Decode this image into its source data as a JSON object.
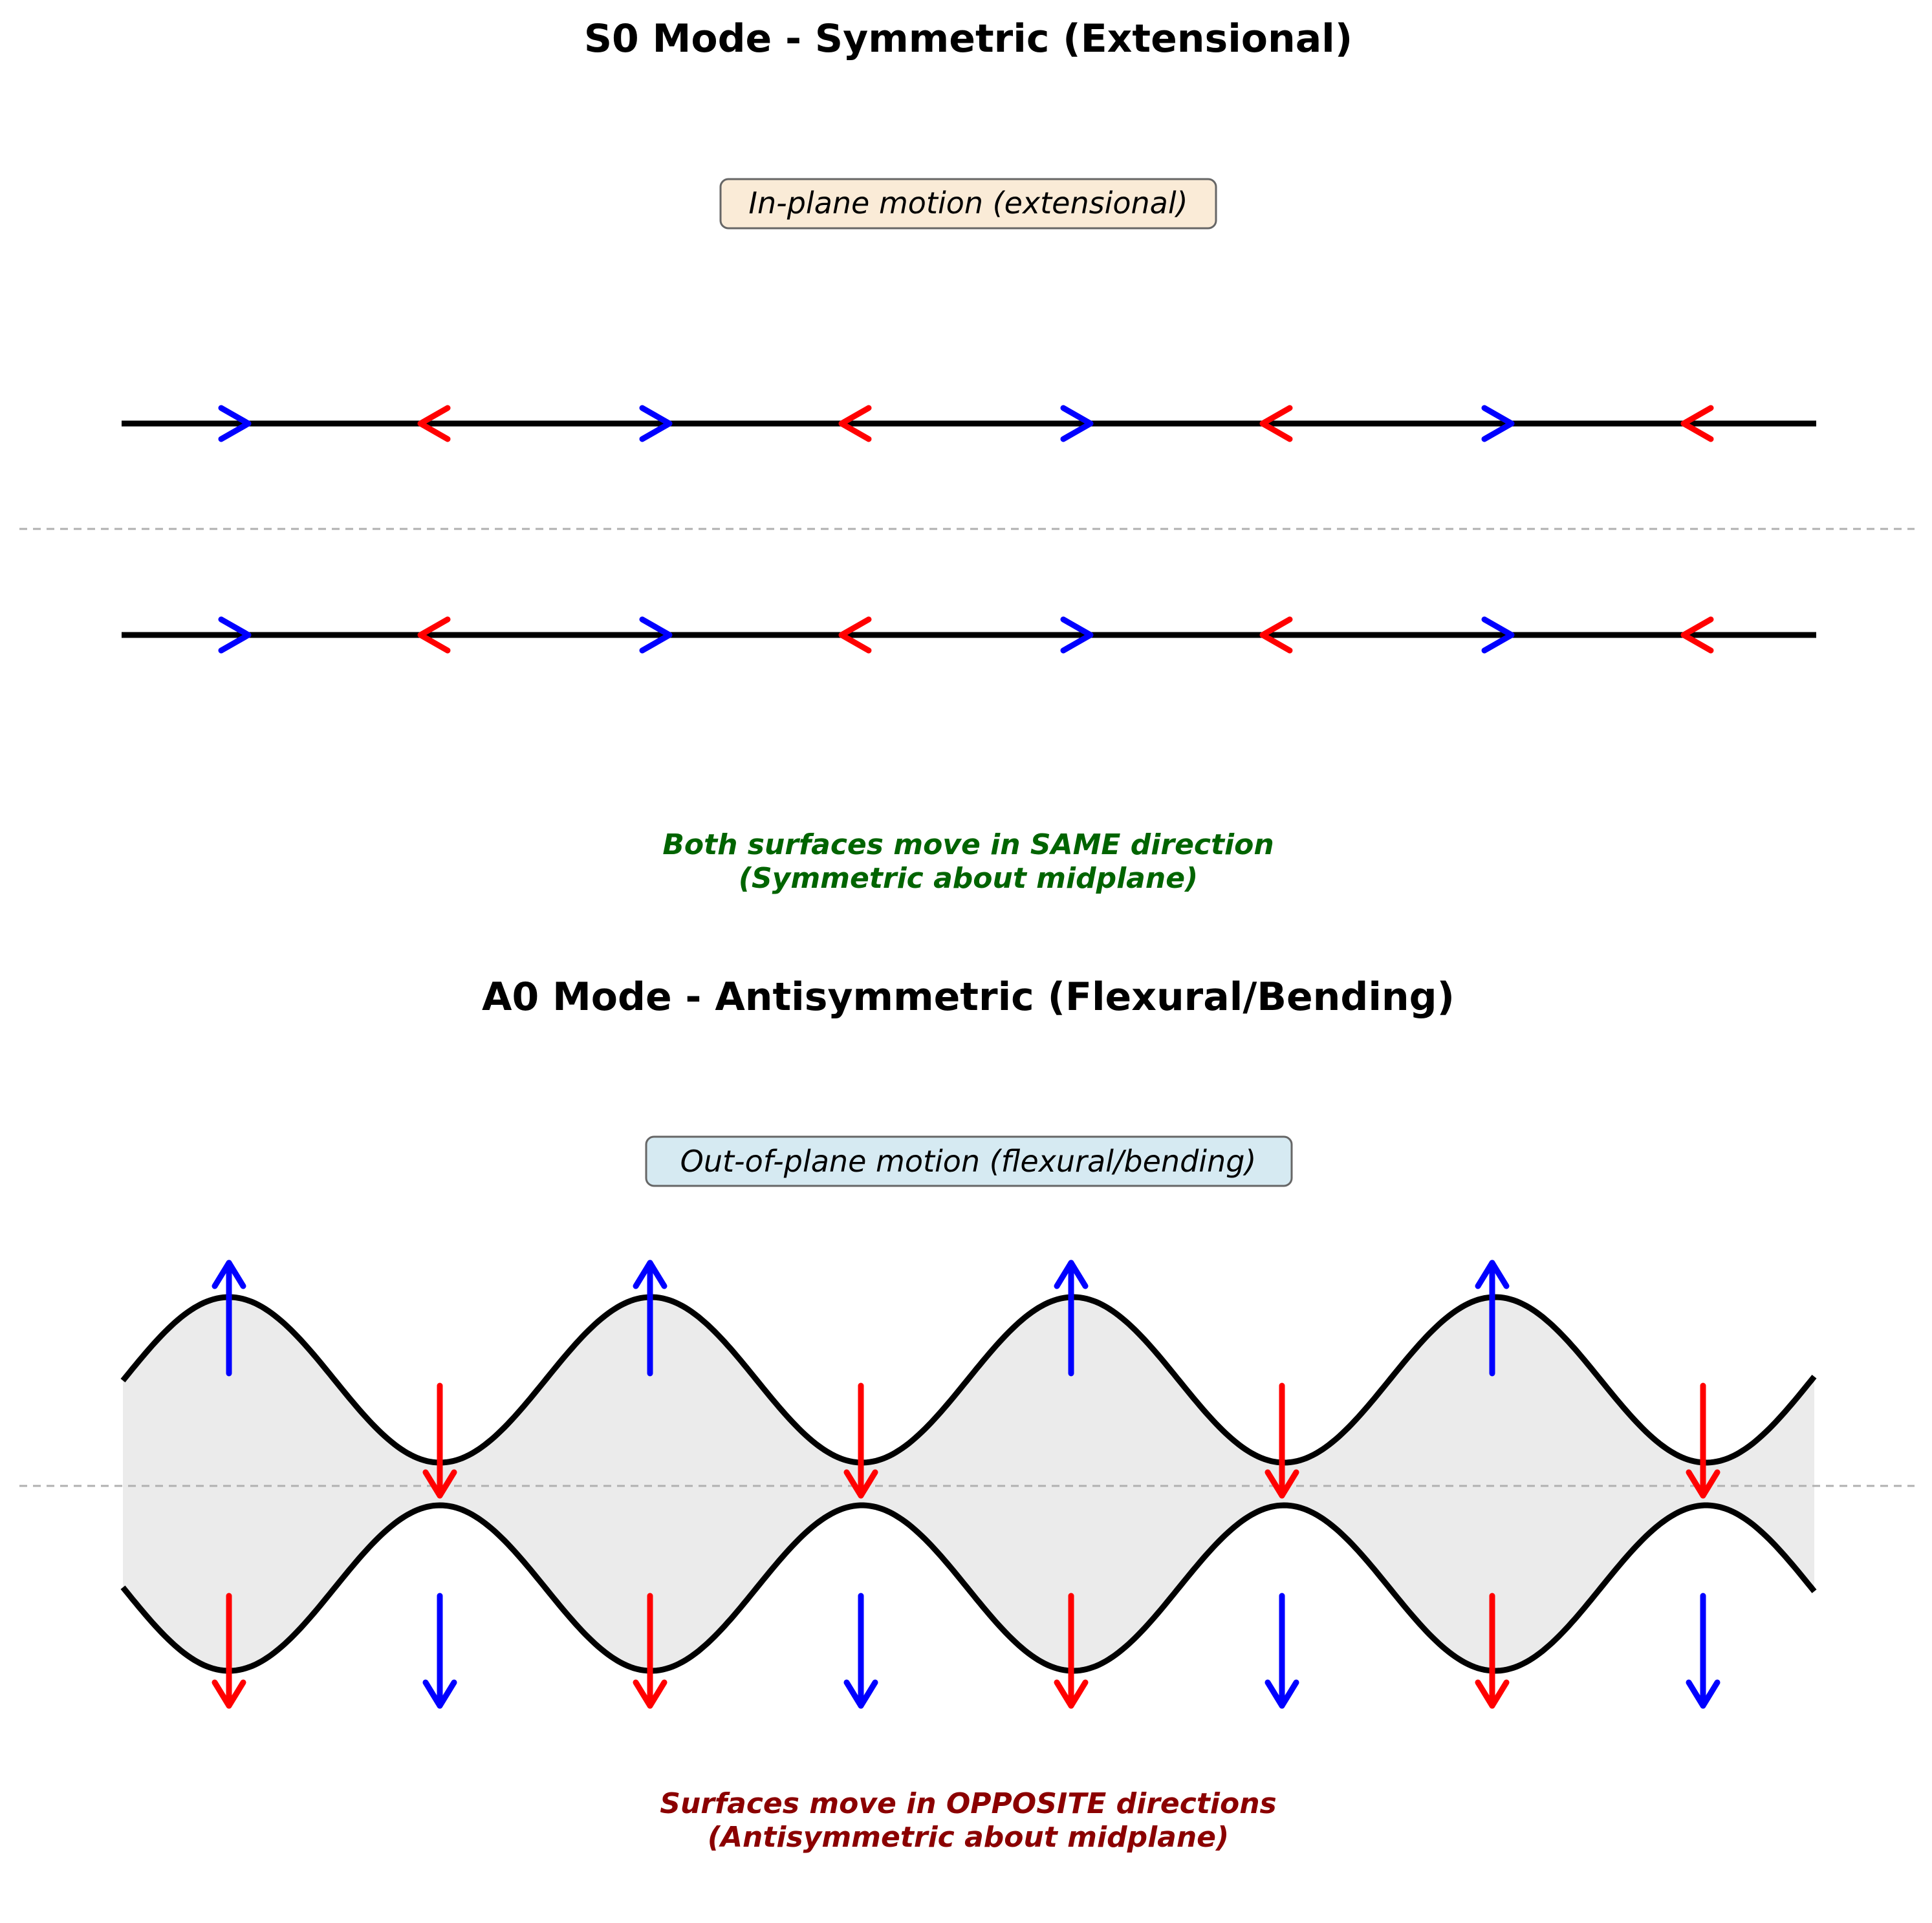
{
  "panels": [
    {
      "title": "S0 Mode - Symmetric (Extensional)",
      "label": "In-plane motion (extensional)",
      "label_background": "#faebd7",
      "note_lines": [
        "Both surfaces move in SAME direction",
        "(Symmetric about midplane)"
      ],
      "note_color": "#006400",
      "arrow_pattern": [
        "right",
        "left",
        "right",
        "left",
        "right",
        "left",
        "right",
        "left"
      ]
    },
    {
      "title": "A0 Mode - Antisymmetric (Flexural/Bending)",
      "label": "Out-of-plane motion (flexural/bending)",
      "label_background": "#d6eaf2",
      "note_lines": [
        "Surfaces move in OPPOSITE directions",
        "(Antisymmetric about midplane)"
      ],
      "note_color": "#8b0000",
      "fill_color": "#ebebeb",
      "arrow_pattern": [
        "up",
        "down",
        "up",
        "down",
        "up",
        "down",
        "up",
        "down"
      ]
    }
  ],
  "colors": {
    "surface": "#000000",
    "arrow_a": "#0000ff",
    "arrow_b": "#ff0000",
    "midplane": "#b0b0b0"
  }
}
